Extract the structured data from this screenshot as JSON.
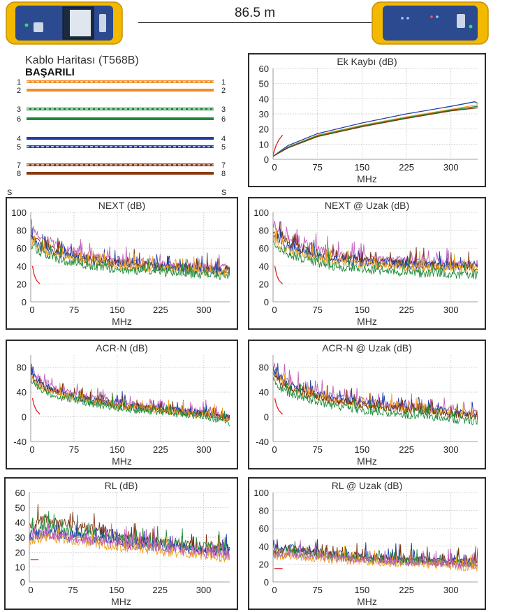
{
  "header": {
    "length": "86.5 m",
    "colors": {
      "device_body": "#f2b900",
      "device_trim": "#e5a300",
      "device_panel": "#2b4a8f",
      "screen": "#1d2a3d"
    }
  },
  "wiremap": {
    "title": "Kablo Haritası (T568B)",
    "status": "BAŞARILI",
    "shield_label": "S",
    "pairs": [
      {
        "pin": "1",
        "color": "#f28c28",
        "striped": true
      },
      {
        "pin": "2",
        "color": "#f28c28",
        "striped": false
      },
      {
        "pin": "3",
        "color": "#1e8c3a",
        "striped": true
      },
      {
        "pin": "6",
        "color": "#1e8c3a",
        "striped": false
      },
      {
        "pin": "4",
        "color": "#1f3fa6",
        "striped": false
      },
      {
        "pin": "5",
        "color": "#1f3fa6",
        "striped": true
      },
      {
        "pin": "7",
        "color": "#8a3a10",
        "striped": true
      },
      {
        "pin": "8",
        "color": "#8a3a10",
        "striped": false
      }
    ]
  },
  "series_colors": {
    "blue": "#1f3fa6",
    "orange": "#f0a020",
    "green": "#1e8c3a",
    "brown": "#7a3410",
    "magenta": "#c060b8",
    "limit": "#e02020"
  },
  "chart_data": [
    {
      "id": "insertion-loss",
      "type": "line",
      "title": "Ek Kaybı (dB)",
      "xlabel": "MHz",
      "ylabel": "",
      "xlim": [
        0,
        345
      ],
      "ylim": [
        0,
        60
      ],
      "xticks": [
        0,
        75,
        150,
        225,
        300
      ],
      "yticks": [
        0,
        10,
        20,
        30,
        40,
        50,
        60
      ],
      "grid": true,
      "series": [
        {
          "color": "blue",
          "x": [
            0,
            25,
            75,
            150,
            225,
            300,
            340,
            345
          ],
          "y": [
            2,
            9,
            17,
            24,
            30,
            35,
            38,
            37
          ]
        },
        {
          "color": "orange",
          "x": [
            0,
            25,
            75,
            150,
            225,
            300,
            345
          ],
          "y": [
            2,
            8,
            16,
            22.5,
            28,
            33,
            36
          ]
        },
        {
          "color": "green",
          "x": [
            0,
            25,
            75,
            150,
            225,
            300,
            345
          ],
          "y": [
            2,
            8,
            15.5,
            22,
            27.5,
            32.5,
            35
          ]
        },
        {
          "color": "brown",
          "x": [
            0,
            25,
            75,
            150,
            225,
            300,
            345
          ],
          "y": [
            2,
            7.5,
            15,
            21.5,
            27,
            32,
            34
          ]
        }
      ],
      "limit": {
        "x": [
          0,
          5,
          10,
          16
        ],
        "y": [
          3,
          9,
          13,
          16
        ]
      }
    },
    {
      "id": "next",
      "type": "line",
      "title": "NEXT (dB)",
      "xlabel": "MHz",
      "ylabel": "",
      "xlim": [
        0,
        345
      ],
      "ylim": [
        0,
        100
      ],
      "xticks": [
        0,
        75,
        150,
        225,
        300
      ],
      "yticks": [
        0,
        20,
        40,
        60,
        80,
        100
      ],
      "grid": true,
      "series": [
        {
          "color": "magenta",
          "x": [
            0,
            10,
            25,
            50,
            100,
            150,
            200,
            250,
            300,
            345
          ],
          "y": [
            84,
            76,
            68,
            62,
            52,
            47,
            44,
            42,
            40,
            38
          ]
        },
        {
          "color": "brown",
          "x": [
            0,
            10,
            25,
            50,
            100,
            150,
            200,
            250,
            300,
            345
          ],
          "y": [
            74,
            68,
            62,
            56,
            48,
            44,
            41,
            39,
            37,
            35
          ]
        },
        {
          "color": "blue",
          "x": [
            0,
            10,
            25,
            50,
            100,
            150,
            200,
            250,
            300,
            345
          ],
          "y": [
            70,
            64,
            58,
            53,
            46,
            42,
            40,
            38,
            36,
            34
          ]
        },
        {
          "color": "orange",
          "x": [
            0,
            10,
            25,
            50,
            100,
            150,
            200,
            250,
            300,
            345
          ],
          "y": [
            68,
            62,
            56,
            51,
            44,
            40,
            38,
            36,
            34,
            32
          ]
        },
        {
          "color": "green",
          "x": [
            0,
            10,
            25,
            50,
            100,
            150,
            200,
            250,
            300,
            345
          ],
          "y": [
            64,
            58,
            52,
            47,
            40,
            36,
            34,
            32,
            30,
            28
          ]
        }
      ],
      "limit": {
        "x": [
          3,
          6,
          10,
          16
        ],
        "y": [
          40,
          30,
          24,
          20
        ]
      }
    },
    {
      "id": "next-remote",
      "type": "line",
      "title": "NEXT @ Uzak (dB)",
      "xlabel": "MHz",
      "ylabel": "",
      "xlim": [
        0,
        345
      ],
      "ylim": [
        0,
        100
      ],
      "xticks": [
        0,
        75,
        150,
        225,
        300
      ],
      "yticks": [
        0,
        20,
        40,
        60,
        80,
        100
      ],
      "grid": true,
      "series": [
        {
          "color": "magenta",
          "x": [
            0,
            10,
            25,
            50,
            100,
            150,
            200,
            250,
            300,
            345
          ],
          "y": [
            88,
            80,
            72,
            64,
            55,
            50,
            47,
            45,
            43,
            42
          ]
        },
        {
          "color": "brown",
          "x": [
            0,
            10,
            25,
            50,
            100,
            150,
            200,
            250,
            300,
            345
          ],
          "y": [
            80,
            72,
            65,
            58,
            50,
            46,
            44,
            42,
            40,
            39
          ]
        },
        {
          "color": "blue",
          "x": [
            0,
            10,
            25,
            50,
            100,
            150,
            200,
            250,
            300,
            345
          ],
          "y": [
            76,
            68,
            62,
            56,
            48,
            44,
            42,
            41,
            40,
            40
          ]
        },
        {
          "color": "orange",
          "x": [
            0,
            10,
            25,
            50,
            100,
            150,
            200,
            250,
            300,
            345
          ],
          "y": [
            70,
            64,
            58,
            52,
            45,
            42,
            40,
            38,
            37,
            37
          ]
        },
        {
          "color": "green",
          "x": [
            0,
            10,
            25,
            50,
            100,
            150,
            200,
            250,
            300,
            345
          ],
          "y": [
            66,
            60,
            54,
            48,
            40,
            36,
            34,
            32,
            31,
            30
          ]
        }
      ],
      "limit": {
        "x": [
          3,
          6,
          10,
          16
        ],
        "y": [
          40,
          30,
          24,
          20
        ]
      }
    },
    {
      "id": "acr-n",
      "type": "line",
      "title": "ACR-N (dB)",
      "xlabel": "MHz",
      "ylabel": "",
      "xlim": [
        0,
        345
      ],
      "ylim": [
        -40,
        100
      ],
      "xticks": [
        0,
        75,
        150,
        225,
        300
      ],
      "yticks": [
        -40,
        0,
        40,
        80
      ],
      "grid": true,
      "series": [
        {
          "color": "magenta",
          "x": [
            0,
            10,
            25,
            50,
            100,
            150,
            200,
            250,
            300,
            345
          ],
          "y": [
            80,
            66,
            54,
            44,
            32,
            24,
            18,
            12,
            6,
            0
          ]
        },
        {
          "color": "blue",
          "x": [
            0,
            10,
            25,
            50,
            100,
            150,
            200,
            250,
            300,
            345
          ],
          "y": [
            70,
            58,
            48,
            40,
            28,
            20,
            15,
            10,
            5,
            0
          ]
        },
        {
          "color": "brown",
          "x": [
            0,
            10,
            25,
            50,
            100,
            150,
            200,
            250,
            300,
            345
          ],
          "y": [
            66,
            56,
            46,
            38,
            27,
            19,
            14,
            9,
            4,
            -2
          ]
        },
        {
          "color": "orange",
          "x": [
            0,
            10,
            25,
            50,
            100,
            150,
            200,
            250,
            300,
            345
          ],
          "y": [
            64,
            54,
            44,
            36,
            25,
            17,
            12,
            8,
            3,
            -4
          ]
        },
        {
          "color": "green",
          "x": [
            0,
            10,
            25,
            50,
            100,
            150,
            200,
            250,
            300,
            345
          ],
          "y": [
            60,
            50,
            40,
            32,
            22,
            14,
            9,
            5,
            0,
            -10
          ]
        }
      ],
      "limit": {
        "x": [
          3,
          6,
          10,
          16
        ],
        "y": [
          30,
          18,
          10,
          4
        ]
      }
    },
    {
      "id": "acr-n-remote",
      "type": "line",
      "title": "ACR-N @ Uzak (dB)",
      "xlabel": "MHz",
      "ylabel": "",
      "xlim": [
        0,
        345
      ],
      "ylim": [
        -40,
        100
      ],
      "xticks": [
        0,
        75,
        150,
        225,
        300
      ],
      "yticks": [
        -40,
        0,
        40,
        80
      ],
      "grid": true,
      "series": [
        {
          "color": "magenta",
          "x": [
            0,
            10,
            25,
            50,
            100,
            150,
            200,
            250,
            300,
            345
          ],
          "y": [
            84,
            70,
            58,
            46,
            34,
            26,
            20,
            15,
            10,
            6
          ]
        },
        {
          "color": "blue",
          "x": [
            0,
            10,
            25,
            50,
            100,
            150,
            200,
            250,
            300,
            345
          ],
          "y": [
            76,
            62,
            52,
            42,
            30,
            22,
            17,
            12,
            8,
            4
          ]
        },
        {
          "color": "orange",
          "x": [
            0,
            10,
            25,
            50,
            100,
            150,
            200,
            250,
            300,
            345
          ],
          "y": [
            70,
            58,
            48,
            38,
            27,
            20,
            14,
            10,
            6,
            2
          ]
        },
        {
          "color": "brown",
          "x": [
            0,
            10,
            25,
            50,
            100,
            150,
            200,
            250,
            300,
            345
          ],
          "y": [
            68,
            56,
            46,
            37,
            26,
            18,
            13,
            9,
            5,
            0
          ]
        },
        {
          "color": "green",
          "x": [
            0,
            10,
            25,
            50,
            100,
            150,
            200,
            250,
            300,
            345
          ],
          "y": [
            60,
            48,
            38,
            30,
            18,
            10,
            5,
            1,
            -4,
            -8
          ]
        }
      ],
      "limit": {
        "x": [
          3,
          6,
          10,
          16
        ],
        "y": [
          30,
          18,
          10,
          4
        ]
      }
    },
    {
      "id": "return-loss",
      "type": "line",
      "title": "RL (dB)",
      "xlabel": "MHz",
      "ylabel": "",
      "xlim": [
        0,
        345
      ],
      "ylim": [
        0,
        60
      ],
      "xticks": [
        0,
        75,
        150,
        225,
        300
      ],
      "yticks": [
        0,
        10,
        20,
        30,
        40,
        50,
        60
      ],
      "grid": true,
      "series": [
        {
          "color": "brown",
          "x": [
            0,
            25,
            50,
            100,
            150,
            200,
            250,
            300,
            345
          ],
          "y": [
            36,
            42,
            40,
            36,
            32,
            28,
            26,
            23,
            20
          ]
        },
        {
          "color": "green",
          "x": [
            0,
            25,
            50,
            100,
            150,
            200,
            250,
            300,
            345
          ],
          "y": [
            32,
            36,
            35,
            32,
            30,
            27,
            25,
            24,
            22
          ]
        },
        {
          "color": "blue",
          "x": [
            0,
            25,
            50,
            100,
            150,
            200,
            250,
            300,
            345
          ],
          "y": [
            30,
            33,
            32,
            29,
            27,
            25,
            23,
            21,
            20
          ]
        },
        {
          "color": "orange",
          "x": [
            0,
            25,
            50,
            100,
            150,
            200,
            250,
            300,
            345
          ],
          "y": [
            28,
            30,
            29,
            26,
            24,
            22,
            20,
            18,
            16
          ]
        },
        {
          "color": "magenta",
          "x": [
            0,
            25,
            50,
            100,
            150,
            200,
            250,
            300,
            345
          ],
          "y": [
            30,
            32,
            31,
            28,
            26,
            24,
            22,
            20,
            18
          ]
        }
      ],
      "limit": {
        "x": [
          2,
          16
        ],
        "y": [
          15,
          15
        ]
      }
    },
    {
      "id": "return-loss-remote",
      "type": "line",
      "title": "RL @ Uzak (dB)",
      "xlabel": "MHz",
      "ylabel": "",
      "xlim": [
        0,
        345
      ],
      "ylim": [
        0,
        100
      ],
      "xticks": [
        0,
        75,
        150,
        225,
        300
      ],
      "yticks": [
        0,
        20,
        40,
        60,
        80,
        100
      ],
      "grid": true,
      "series": [
        {
          "color": "blue",
          "x": [
            0,
            25,
            50,
            100,
            150,
            200,
            250,
            300,
            345
          ],
          "y": [
            36,
            38,
            36,
            32,
            28,
            26,
            25,
            24,
            22
          ]
        },
        {
          "color": "brown",
          "x": [
            0,
            25,
            50,
            100,
            150,
            200,
            250,
            300,
            345
          ],
          "y": [
            34,
            36,
            34,
            30,
            27,
            25,
            24,
            22,
            22
          ]
        },
        {
          "color": "green",
          "x": [
            0,
            25,
            50,
            100,
            150,
            200,
            250,
            300,
            345
          ],
          "y": [
            30,
            32,
            31,
            28,
            26,
            24,
            22,
            21,
            20
          ]
        },
        {
          "color": "orange",
          "x": [
            0,
            25,
            50,
            100,
            150,
            200,
            250,
            300,
            345
          ],
          "y": [
            28,
            30,
            28,
            25,
            23,
            21,
            20,
            18,
            16
          ]
        },
        {
          "color": "magenta",
          "x": [
            0,
            25,
            50,
            100,
            150,
            200,
            250,
            300,
            345
          ],
          "y": [
            30,
            31,
            30,
            27,
            25,
            23,
            22,
            20,
            19
          ]
        }
      ],
      "limit": {
        "x": [
          2,
          16
        ],
        "y": [
          15,
          15
        ]
      }
    }
  ]
}
